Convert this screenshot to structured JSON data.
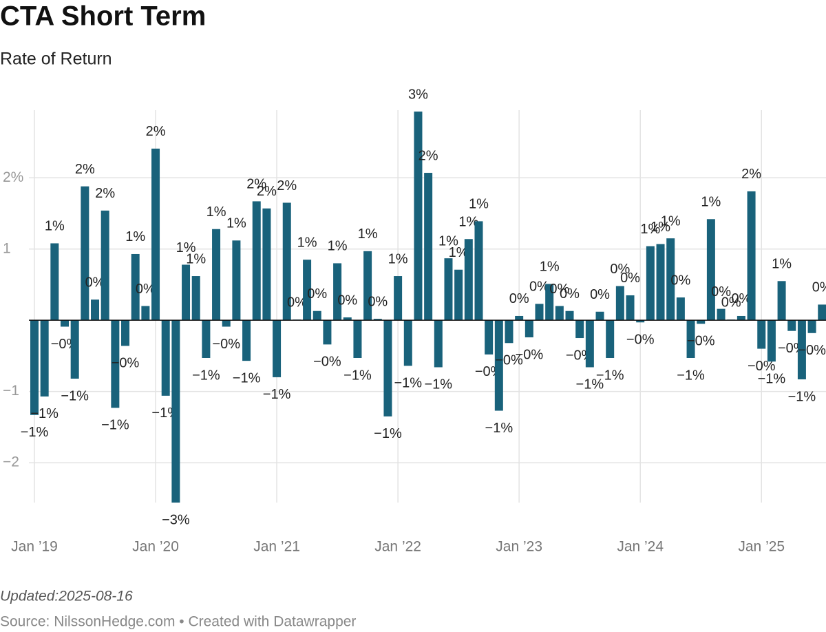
{
  "chart_data": {
    "type": "bar",
    "title": "CTA Short Term",
    "subtitle": "Rate of Return",
    "note": "Updated:2025-08-16",
    "source": "Source: NilssonHedge.com • Created with Datawrapper",
    "color": "#19627b",
    "grid": true,
    "categories": [
      "Jan ’19",
      null,
      null,
      null,
      null,
      null,
      null,
      null,
      null,
      null,
      null,
      null,
      "Jan ’20",
      null,
      null,
      null,
      null,
      null,
      null,
      null,
      null,
      null,
      null,
      null,
      "Jan ’21",
      null,
      null,
      null,
      null,
      null,
      null,
      null,
      null,
      null,
      null,
      null,
      "Jan ’22",
      null,
      null,
      null,
      null,
      null,
      null,
      null,
      null,
      null,
      null,
      null,
      "Jan ’23",
      null,
      null,
      null,
      null,
      null,
      null,
      null,
      null,
      null,
      null,
      null,
      "Jan ’24",
      null,
      null,
      null,
      null,
      null,
      null,
      null,
      null,
      null,
      null,
      null,
      "Jan ’25",
      null,
      null,
      null,
      null,
      null,
      null
    ],
    "values": [
      -1.33,
      -1.07,
      1.08,
      -0.09,
      -0.82,
      1.88,
      0.29,
      1.54,
      -1.23,
      -0.36,
      0.93,
      0.2,
      2.41,
      -1.06,
      -2.56,
      0.78,
      0.62,
      -0.53,
      1.28,
      -0.09,
      1.12,
      -0.57,
      1.67,
      1.57,
      -0.8,
      1.65,
      0.01,
      0.85,
      0.13,
      -0.34,
      0.8,
      0.04,
      -0.53,
      0.97,
      0.02,
      -1.35,
      0.62,
      -0.64,
      2.93,
      2.07,
      -0.66,
      0.87,
      0.71,
      1.14,
      1.39,
      -0.48,
      -1.27,
      -0.32,
      0.06,
      -0.24,
      0.23,
      0.51,
      0.2,
      0.13,
      -0.25,
      -0.66,
      0.12,
      -0.53,
      0.48,
      0.35,
      -0.03,
      1.04,
      1.07,
      1.15,
      0.32,
      -0.53,
      -0.05,
      1.42,
      0.16,
      0.01,
      0.06,
      1.81,
      -0.4,
      -0.58,
      0.55,
      -0.15,
      -0.83,
      -0.18,
      0.22
    ],
    "value_labels": [
      "−1%",
      "−1%",
      "1%",
      "−0%",
      "−1%",
      "2%",
      "0%",
      "2%",
      "−1%",
      "−0%",
      "1%",
      "0%",
      "2%",
      "−1%",
      "−3%",
      "1%",
      "1%",
      "−1%",
      "1%",
      "−0%",
      "1%",
      "−1%",
      "2%",
      "2%",
      "−1%",
      "2%",
      "0%",
      "1%",
      "0%",
      "−0%",
      "1%",
      "0%",
      "−1%",
      "1%",
      "0%",
      "−1%",
      "1%",
      "−1%",
      "3%",
      "2%",
      "−1%",
      "1%",
      "1%",
      "1%",
      "1%",
      "−0%",
      "−1%",
      "−0%",
      "0%",
      "−0%",
      "0%",
      "1%",
      "0%",
      "0%",
      "−0%",
      "−1%",
      "0%",
      "−1%",
      "0%",
      "0%",
      "−0%",
      "1%",
      "1%",
      "1%",
      "0%",
      "−1%",
      "−0%",
      "1%",
      "0%",
      "0%",
      "0%",
      "2%",
      "−0%",
      "−1%",
      "1%",
      "−0%",
      "−1%",
      "−0%",
      "0%"
    ],
    "ylim": [
      -2.56,
      2.95
    ],
    "yticks": [
      {
        "value": -2,
        "label": "−2"
      },
      {
        "value": -1,
        "label": "−1"
      },
      1,
      {
        "value": 2,
        "label": "2%"
      }
    ]
  }
}
